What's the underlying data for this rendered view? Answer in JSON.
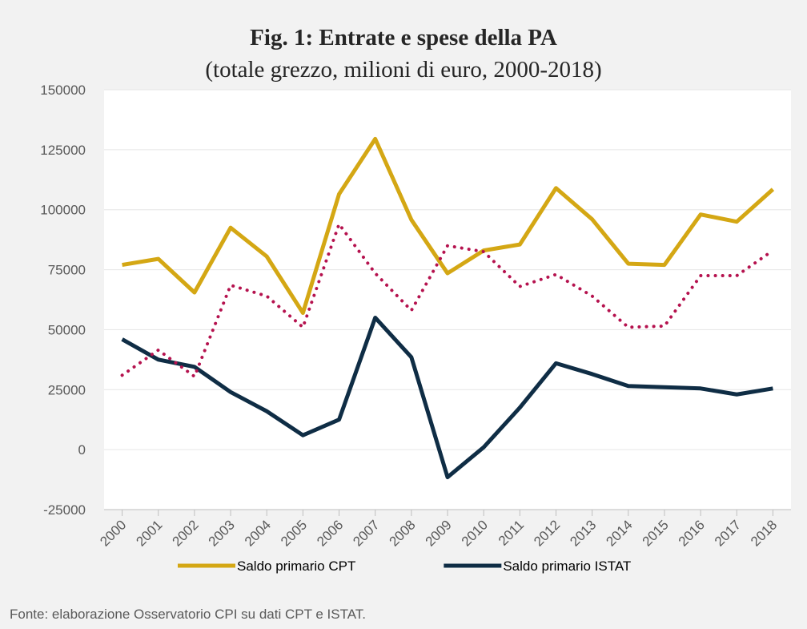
{
  "chart_data": {
    "type": "line",
    "title": "Fig. 1: Entrate e spese della PA",
    "subtitle": "(totale grezzo, milioni di euro, 2000-2018)",
    "source": "Fonte: elaborazione Osservatorio CPI su dati CPT e ISTAT.",
    "categories": [
      "2000",
      "2001",
      "2002",
      "2003",
      "2004",
      "2005",
      "2006",
      "2007",
      "2008",
      "2009",
      "2010",
      "2011",
      "2012",
      "2013",
      "2014",
      "2015",
      "2016",
      "2017",
      "2018"
    ],
    "series": [
      {
        "name": "Saldo primario CPT",
        "color": "#d4a714",
        "values": [
          77000,
          79500,
          65500,
          92500,
          80500,
          57000,
          106500,
          129500,
          95800,
          73500,
          83000,
          85500,
          109000,
          96000,
          77500,
          77000,
          98000,
          95000,
          108500
        ]
      },
      {
        "name": "Saldo primario ISTAT",
        "color": "#0f2d45",
        "values": [
          46000,
          37500,
          34500,
          24000,
          16000,
          6000,
          12500,
          55000,
          38500,
          -11500,
          1000,
          17500,
          36000,
          31500,
          26500,
          26000,
          25500,
          23000,
          25500
        ]
      },
      {
        "color": "#b5124e",
        "dotted": true,
        "values": [
          31000,
          41500,
          30500,
          68500,
          64000,
          51000,
          94000,
          73500,
          58000,
          85000,
          82500,
          68000,
          73000,
          64000,
          51000,
          51500,
          72500,
          72500,
          83000
        ]
      }
    ],
    "ylim": [
      -25000,
      150000
    ],
    "yticks": [
      -25000,
      0,
      25000,
      50000,
      75000,
      100000,
      125000,
      150000
    ],
    "grid": true
  }
}
